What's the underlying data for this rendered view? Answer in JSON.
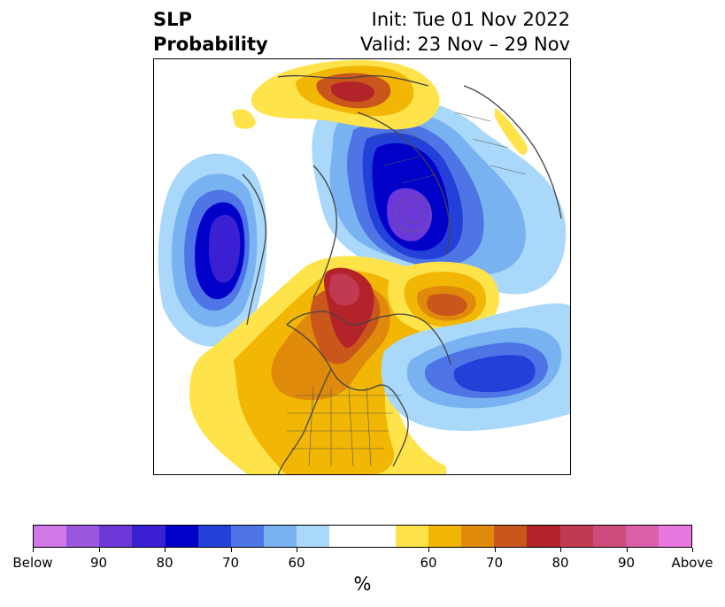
{
  "title": {
    "left_line1": "SLP",
    "left_line2": "Probability",
    "right_line1": "Init: Tue 01 Nov 2022",
    "right_line2": "Valid: 23 Nov – 29 Nov"
  },
  "colorbar": {
    "unit": "%",
    "colors": [
      "#d277e8",
      "#9b56e0",
      "#6c38d8",
      "#3a1fd3",
      "#0000c8",
      "#2340d8",
      "#4e74e6",
      "#78b2f0",
      "#aad8fa",
      "#ffffff",
      "#ffffff",
      "#ffe34a",
      "#f2b705",
      "#e08a0c",
      "#c9561a",
      "#b3242a",
      "#c23a52",
      "#cc4a7c",
      "#da5fa8",
      "#e877e0"
    ],
    "labels": [
      "Below",
      "90",
      "80",
      "70",
      "60",
      "60",
      "70",
      "80",
      "90",
      "Above"
    ]
  },
  "map": {
    "projection": "north-polar-stereographic",
    "colors": {
      "below_deep": "#6c38d8",
      "below_strong": "#0000c8",
      "below_mid": "#2340d8",
      "below_light": "#4e74e6",
      "below_pale": "#78b2f0",
      "below_faint": "#aad8fa",
      "above_faint": "#ffe34a",
      "above_light": "#f2b705",
      "above_mid": "#e08a0c",
      "above_strong": "#c9561a",
      "above_deep": "#b3242a",
      "above_very": "#c23a52"
    }
  }
}
